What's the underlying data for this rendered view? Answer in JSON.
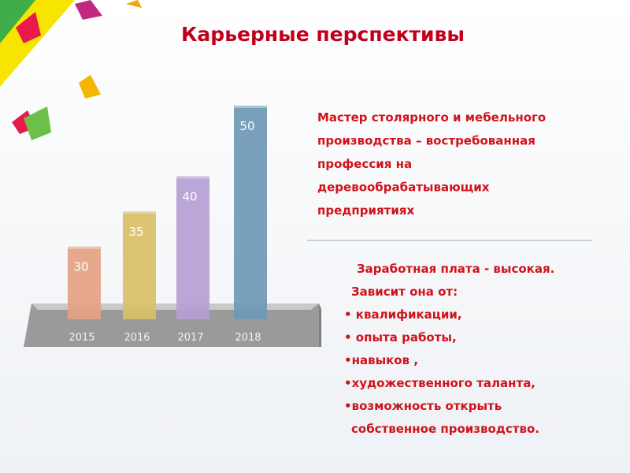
{
  "title": "Карьерные перспективы",
  "description": {
    "lines": [
      "Мастер столярного и мебельного",
      "производства – востребованная",
      "профессия на",
      "деревообрабатывающих",
      "предприятиях"
    ]
  },
  "salary": {
    "lines": [
      "Заработная плата - высокая.",
      "Зависит она от:",
      "• квалификации,",
      "• опыта работы,",
      "•навыков ,",
      "•художественного таланта,",
      "•возможность открыть",
      "собственное производство."
    ]
  },
  "chart_data": {
    "type": "bar",
    "categories": [
      "2015",
      "2016",
      "2017",
      "2018"
    ],
    "values": [
      30,
      35,
      40,
      50
    ],
    "colors": [
      "#e4a283",
      "#d8c068",
      "#b59fd4",
      "#6e99b6"
    ],
    "ylim": [
      20,
      50
    ]
  }
}
